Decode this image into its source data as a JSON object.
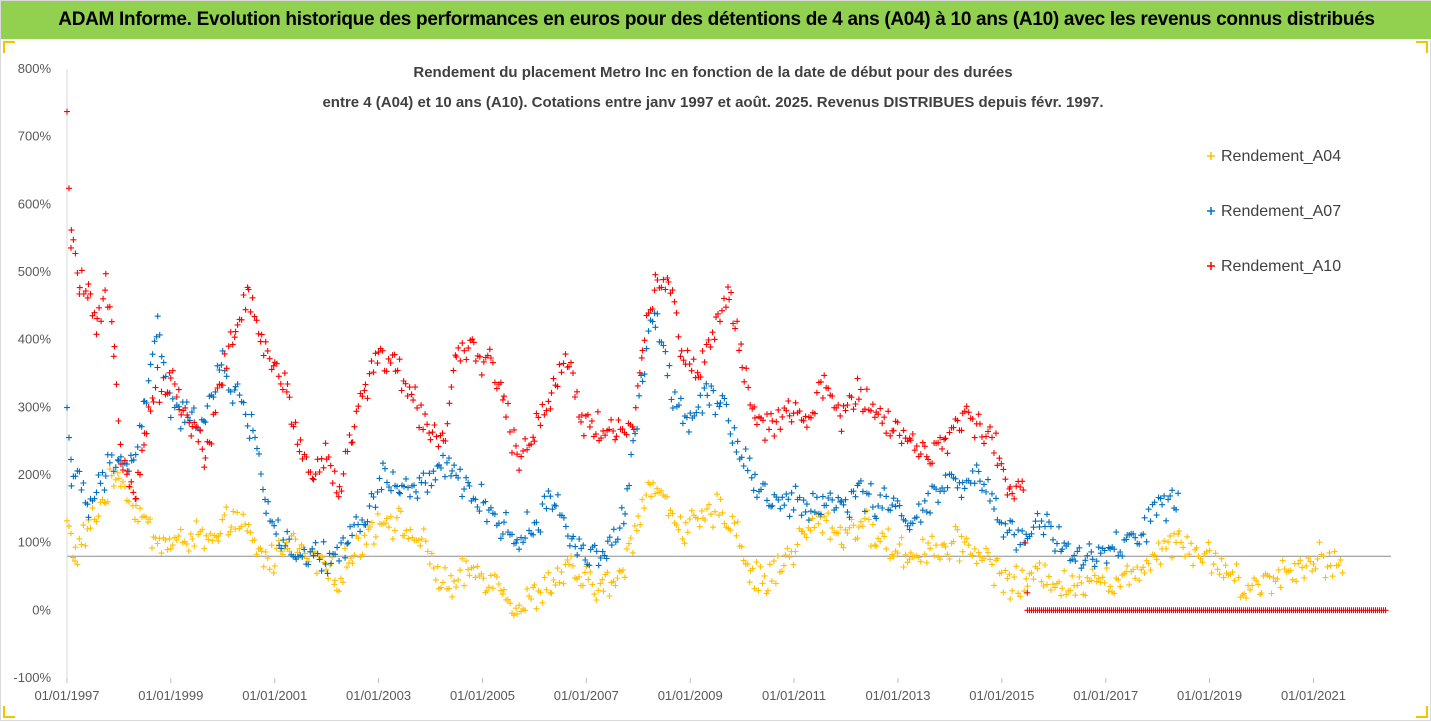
{
  "banner": {
    "title": "ADAM Informe. Evolution historique des performances en euros pour des détentions de 4 ans (A04) à 10 ans (A10) avec les revenus connus distribués",
    "background": "#92d050"
  },
  "chart_data": {
    "type": "scatter",
    "title_lines": [
      "Rendement du placement Metro Inc en fonction de la date de début pour des durées",
      "entre 4 (A04) et 10 ans (A10). Cotations entre janv 1997 et août. 2025. Revenus DISTRIBUES depuis févr. 1997."
    ],
    "xlabel": "",
    "ylabel": "",
    "x_axis": {
      "type": "date",
      "range": [
        "1997-01-01",
        "2022-06-30"
      ],
      "tick_labels": [
        "01/01/1997",
        "01/01/1999",
        "01/01/2001",
        "01/01/2003",
        "01/01/2005",
        "01/01/2007",
        "01/01/2009",
        "01/01/2011",
        "01/01/2013",
        "01/01/2015",
        "01/01/2017",
        "01/01/2019",
        "01/01/2021"
      ]
    },
    "y_axis": {
      "range": [
        -100,
        800
      ],
      "unit": "%",
      "tick_labels": [
        "-100%",
        "0%",
        "100%",
        "200%",
        "300%",
        "400%",
        "500%",
        "600%",
        "700%",
        "800%"
      ]
    },
    "reference_line": 80,
    "grid": false,
    "marker": "+",
    "legend": {
      "position": "right"
    },
    "series": [
      {
        "name": "Rendement_A04",
        "color": "#ffc000",
        "points": [
          [
            "1997-01-01",
            130
          ],
          [
            "1997-03-01",
            80
          ],
          [
            "1997-06-01",
            120
          ],
          [
            "1997-10-01",
            170
          ],
          [
            "1998-01-01",
            205
          ],
          [
            "1998-05-01",
            150
          ],
          [
            "1998-09-01",
            110
          ],
          [
            "1999-01-01",
            95
          ],
          [
            "1999-06-01",
            110
          ],
          [
            "1999-12-01",
            100
          ],
          [
            "2000-03-01",
            140
          ],
          [
            "2000-07-01",
            110
          ],
          [
            "2000-10-01",
            80
          ],
          [
            "2001-01-01",
            75
          ],
          [
            "2001-04-01",
            110
          ],
          [
            "2001-08-01",
            80
          ],
          [
            "2001-12-01",
            70
          ],
          [
            "2002-03-01",
            45
          ],
          [
            "2002-07-01",
            80
          ],
          [
            "2002-11-01",
            120
          ],
          [
            "2003-03-01",
            140
          ],
          [
            "2003-07-01",
            120
          ],
          [
            "2003-11-01",
            100
          ],
          [
            "2004-03-01",
            50
          ],
          [
            "2004-06-01",
            30
          ],
          [
            "2004-10-01",
            60
          ],
          [
            "2005-02-01",
            50
          ],
          [
            "2005-06-01",
            35
          ],
          [
            "2005-09-01",
            0
          ],
          [
            "2006-01-01",
            20
          ],
          [
            "2006-05-01",
            40
          ],
          [
            "2006-09-01",
            60
          ],
          [
            "2007-01-01",
            40
          ],
          [
            "2007-05-01",
            35
          ],
          [
            "2007-09-01",
            45
          ],
          [
            "2008-01-01",
            140
          ],
          [
            "2008-04-01",
            190
          ],
          [
            "2008-08-01",
            150
          ],
          [
            "2008-12-01",
            120
          ],
          [
            "2009-04-01",
            130
          ],
          [
            "2009-08-01",
            150
          ],
          [
            "2009-12-01",
            120
          ],
          [
            "2010-03-01",
            50
          ],
          [
            "2010-07-01",
            45
          ],
          [
            "2010-11-01",
            75
          ],
          [
            "2011-03-01",
            110
          ],
          [
            "2011-08-01",
            135
          ],
          [
            "2011-12-01",
            110
          ],
          [
            "2012-04-01",
            130
          ],
          [
            "2012-08-01",
            110
          ],
          [
            "2012-12-01",
            90
          ],
          [
            "2013-04-01",
            80
          ],
          [
            "2013-08-01",
            95
          ],
          [
            "2013-12-01",
            90
          ],
          [
            "2014-04-01",
            100
          ],
          [
            "2014-08-01",
            85
          ],
          [
            "2014-12-01",
            60
          ],
          [
            "2015-03-01",
            40
          ],
          [
            "2015-07-01",
            40
          ],
          [
            "2015-11-01",
            60
          ],
          [
            "2016-03-01",
            35
          ],
          [
            "2016-06-01",
            30
          ],
          [
            "2016-10-01",
            60
          ],
          [
            "2017-02-01",
            40
          ],
          [
            "2017-06-01",
            45
          ],
          [
            "2017-10-01",
            70
          ],
          [
            "2018-02-01",
            95
          ],
          [
            "2018-06-01",
            110
          ],
          [
            "2018-10-01",
            85
          ],
          [
            "2019-01-01",
            80
          ],
          [
            "2019-05-01",
            60
          ],
          [
            "2019-09-01",
            30
          ],
          [
            "2020-01-01",
            40
          ],
          [
            "2020-05-01",
            55
          ],
          [
            "2020-09-01",
            60
          ],
          [
            "2021-01-01",
            80
          ],
          [
            "2021-05-01",
            75
          ],
          [
            "2021-08-01",
            60
          ]
        ]
      },
      {
        "name": "Rendement_A07",
        "color": "#0070c0",
        "points": [
          [
            "1997-01-01",
            300
          ],
          [
            "1997-02-01",
            210
          ],
          [
            "1997-06-01",
            150
          ],
          [
            "1997-10-01",
            200
          ],
          [
            "1998-01-01",
            230
          ],
          [
            "1998-04-01",
            210
          ],
          [
            "1998-07-01",
            300
          ],
          [
            "1998-10-01",
            420
          ],
          [
            "1999-01-01",
            300
          ],
          [
            "1999-05-01",
            280
          ],
          [
            "1999-09-01",
            290
          ],
          [
            "2000-01-01",
            360
          ],
          [
            "2000-04-01",
            320
          ],
          [
            "2000-08-01",
            270
          ],
          [
            "2000-11-01",
            160
          ],
          [
            "2001-02-01",
            110
          ],
          [
            "2001-06-01",
            70
          ],
          [
            "2001-10-01",
            80
          ],
          [
            "2002-02-01",
            70
          ],
          [
            "2002-06-01",
            110
          ],
          [
            "2002-10-01",
            130
          ],
          [
            "2003-02-01",
            200
          ],
          [
            "2003-06-01",
            180
          ],
          [
            "2003-10-01",
            175
          ],
          [
            "2004-03-01",
            210
          ],
          [
            "2004-06-01",
            200
          ],
          [
            "2004-10-01",
            180
          ],
          [
            "2005-02-01",
            150
          ],
          [
            "2005-06-01",
            125
          ],
          [
            "2005-09-01",
            100
          ],
          [
            "2006-01-01",
            130
          ],
          [
            "2006-06-01",
            165
          ],
          [
            "2006-10-01",
            100
          ],
          [
            "2007-02-01",
            80
          ],
          [
            "2007-06-01",
            90
          ],
          [
            "2007-10-01",
            140
          ],
          [
            "2008-02-01",
            350
          ],
          [
            "2008-05-01",
            440
          ],
          [
            "2008-09-01",
            320
          ],
          [
            "2009-01-01",
            280
          ],
          [
            "2009-05-01",
            330
          ],
          [
            "2009-08-01",
            310
          ],
          [
            "2009-12-01",
            250
          ],
          [
            "2010-04-01",
            190
          ],
          [
            "2010-08-01",
            160
          ],
          [
            "2010-12-01",
            160
          ],
          [
            "2011-04-01",
            150
          ],
          [
            "2011-08-01",
            160
          ],
          [
            "2011-12-01",
            155
          ],
          [
            "2012-04-01",
            175
          ],
          [
            "2012-08-01",
            160
          ],
          [
            "2012-12-01",
            150
          ],
          [
            "2013-04-01",
            140
          ],
          [
            "2013-08-01",
            150
          ],
          [
            "2013-12-01",
            190
          ],
          [
            "2014-04-01",
            180
          ],
          [
            "2014-08-01",
            195
          ],
          [
            "2014-12-01",
            150
          ],
          [
            "2015-03-01",
            110
          ],
          [
            "2015-07-01",
            120
          ],
          [
            "2015-11-01",
            130
          ],
          [
            "2016-03-01",
            90
          ],
          [
            "2016-06-01",
            80
          ],
          [
            "2016-10-01",
            75
          ],
          [
            "2017-02-01",
            85
          ],
          [
            "2017-06-01",
            100
          ],
          [
            "2017-10-01",
            120
          ],
          [
            "2018-02-01",
            160
          ],
          [
            "2018-06-01",
            155
          ]
        ]
      },
      {
        "name": "Rendement_A10",
        "color": "#ff0000",
        "points": [
          [
            "1997-01-01",
            720
          ],
          [
            "1997-01-15",
            620
          ],
          [
            "1997-02-01",
            540
          ],
          [
            "1997-04-01",
            490
          ],
          [
            "1997-06-01",
            460
          ],
          [
            "1997-08-01",
            410
          ],
          [
            "1997-10-01",
            470
          ],
          [
            "1997-12-01",
            380
          ],
          [
            "1998-01-15",
            240
          ],
          [
            "1998-03-01",
            210
          ],
          [
            "1998-05-01",
            180
          ],
          [
            "1998-07-01",
            250
          ],
          [
            "1998-09-01",
            330
          ],
          [
            "1999-01-01",
            340
          ],
          [
            "1999-03-01",
            310
          ],
          [
            "1999-06-01",
            270
          ],
          [
            "1999-09-01",
            230
          ],
          [
            "2000-01-01",
            350
          ],
          [
            "2000-04-01",
            420
          ],
          [
            "2000-07-01",
            460
          ],
          [
            "2000-10-01",
            400
          ],
          [
            "2001-01-01",
            360
          ],
          [
            "2001-04-01",
            320
          ],
          [
            "2001-07-01",
            240
          ],
          [
            "2001-10-01",
            200
          ],
          [
            "2002-01-01",
            230
          ],
          [
            "2002-04-01",
            180
          ],
          [
            "2002-07-01",
            260
          ],
          [
            "2002-10-01",
            330
          ],
          [
            "2003-01-01",
            380
          ],
          [
            "2003-05-01",
            360
          ],
          [
            "2003-09-01",
            310
          ],
          [
            "2004-01-01",
            270
          ],
          [
            "2004-04-01",
            250
          ],
          [
            "2004-07-01",
            370
          ],
          [
            "2004-11-01",
            380
          ],
          [
            "2005-03-01",
            370
          ],
          [
            "2005-06-01",
            310
          ],
          [
            "2005-09-01",
            220
          ],
          [
            "2006-01-01",
            270
          ],
          [
            "2006-05-01",
            320
          ],
          [
            "2006-09-01",
            380
          ],
          [
            "2006-12-01",
            280
          ],
          [
            "2007-04-01",
            270
          ],
          [
            "2007-08-01",
            260
          ],
          [
            "2007-12-01",
            280
          ],
          [
            "2008-02-01",
            380
          ],
          [
            "2008-05-01",
            480
          ],
          [
            "2008-08-01",
            500
          ],
          [
            "2008-11-01",
            380
          ],
          [
            "2009-03-01",
            350
          ],
          [
            "2009-07-01",
            420
          ],
          [
            "2009-10-01",
            480
          ],
          [
            "2010-01-01",
            360
          ],
          [
            "2010-04-01",
            280
          ],
          [
            "2010-08-01",
            270
          ],
          [
            "2010-12-01",
            290
          ],
          [
            "2011-04-01",
            280
          ],
          [
            "2011-08-01",
            330
          ],
          [
            "2011-12-01",
            290
          ],
          [
            "2012-04-01",
            320
          ],
          [
            "2012-08-01",
            300
          ],
          [
            "2012-12-01",
            270
          ],
          [
            "2013-04-01",
            250
          ],
          [
            "2013-08-01",
            230
          ],
          [
            "2013-12-01",
            240
          ],
          [
            "2014-04-01",
            290
          ],
          [
            "2014-08-01",
            280
          ],
          [
            "2014-12-01",
            230
          ],
          [
            "2015-03-01",
            180
          ],
          [
            "2015-06-01",
            190
          ],
          [
            "2015-07-01",
            0
          ],
          [
            "2022-06-01",
            0
          ]
        ]
      }
    ]
  }
}
